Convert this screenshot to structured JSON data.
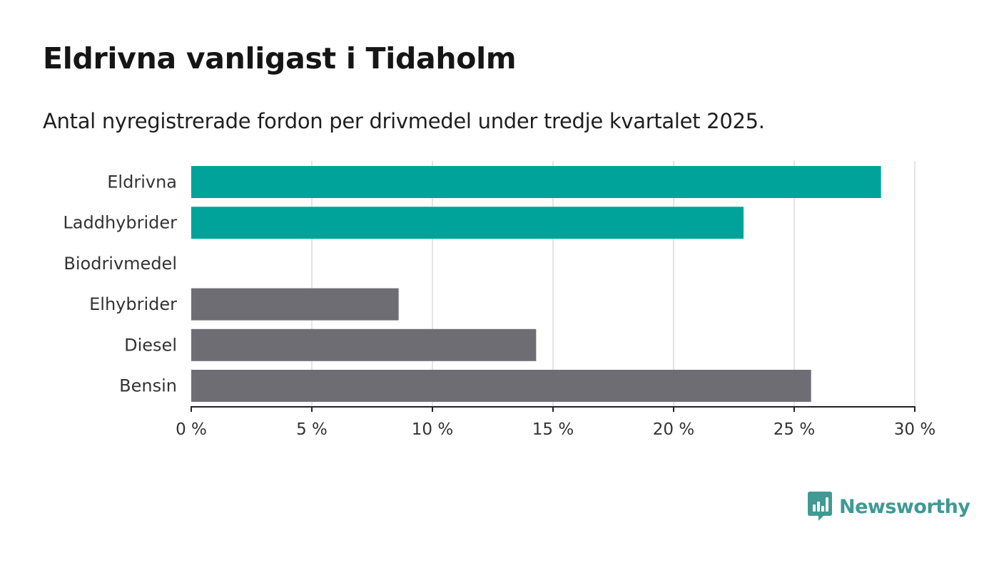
{
  "title": "Eldrivna vanligast i Tidaholm",
  "subtitle": "Antal nyregistrerade fordon per drivmedel under tredje kvartalet 2025.",
  "brand": {
    "name": "Newsworthy",
    "color": "#3f9a93",
    "icon": "bar-chart-speech-icon"
  },
  "colors": {
    "highlight": "#00a39a",
    "normal": "#6f6d74",
    "grid": "#dcdcdc",
    "axis": "#222222"
  },
  "chart_data": {
    "type": "bar",
    "orientation": "horizontal",
    "categories": [
      "Eldrivna",
      "Laddhybrider",
      "Biodrivmedel",
      "Elhybrider",
      "Diesel",
      "Bensin"
    ],
    "values": [
      28.6,
      22.9,
      0,
      8.6,
      14.3,
      25.7
    ],
    "highlighted": [
      true,
      true,
      false,
      false,
      false,
      false
    ],
    "unit": "%",
    "xlim": [
      0,
      30
    ],
    "ticks": [
      0,
      5,
      10,
      15,
      20,
      25,
      30
    ],
    "tick_labels": [
      "0 %",
      "5 %",
      "10 %",
      "15 %",
      "20 %",
      "25 %",
      "30 %"
    ],
    "grid": true
  }
}
